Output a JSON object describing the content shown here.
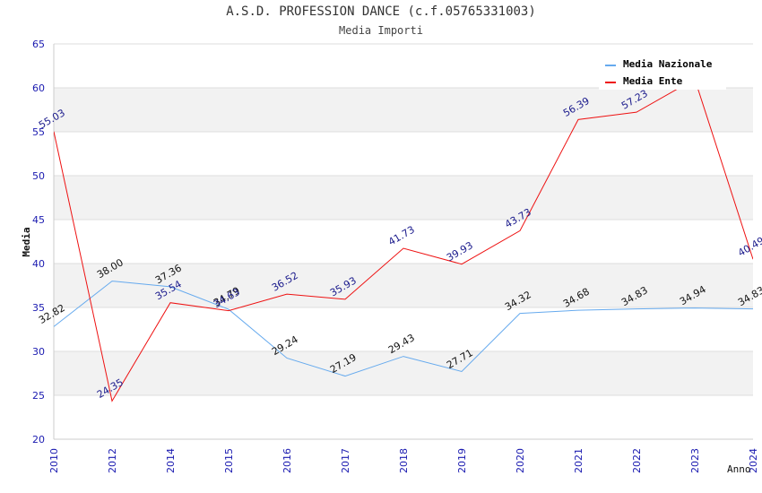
{
  "title": "A.S.D. PROFESSION DANCE (c.f.05765331003)",
  "subtitle": "Media Importi",
  "chart_data": {
    "type": "line",
    "x": [
      "2010",
      "2012",
      "2014",
      "2015",
      "2016",
      "2017",
      "2018",
      "2019",
      "2020",
      "2021",
      "2022",
      "2023",
      "2024"
    ],
    "ylabel": "Media",
    "xlabel": "Anno",
    "ylim": [
      20,
      65
    ],
    "yticks": [
      20,
      25,
      30,
      35,
      40,
      45,
      50,
      55,
      60,
      65
    ],
    "grid": true,
    "legend": "top-right",
    "series": [
      {
        "name": "Media Nazionale",
        "color": "#66aaee",
        "values": [
          32.82,
          38.0,
          37.36,
          34.79,
          29.24,
          27.19,
          29.43,
          27.71,
          34.32,
          34.68,
          34.83,
          34.94,
          34.83
        ],
        "labels": [
          "32.82",
          "38.00",
          "37.36",
          "34.79",
          "29.24",
          "27.19",
          "29.43",
          "27.71",
          "34.32",
          "34.68",
          "34.83",
          "34.94",
          "34.83"
        ]
      },
      {
        "name": "Media Ente",
        "color": "#ee1111",
        "values": [
          55.03,
          24.35,
          35.54,
          34.63,
          36.52,
          35.93,
          41.73,
          39.93,
          43.73,
          56.39,
          57.23,
          61.0,
          40.49
        ],
        "labels": [
          "55.03",
          "24.35",
          "35.54",
          "34.63",
          "36.52",
          "35.93",
          "41.73",
          "39.93",
          "43.73",
          "56.39",
          "57.23",
          "",
          "40.49"
        ]
      }
    ]
  }
}
